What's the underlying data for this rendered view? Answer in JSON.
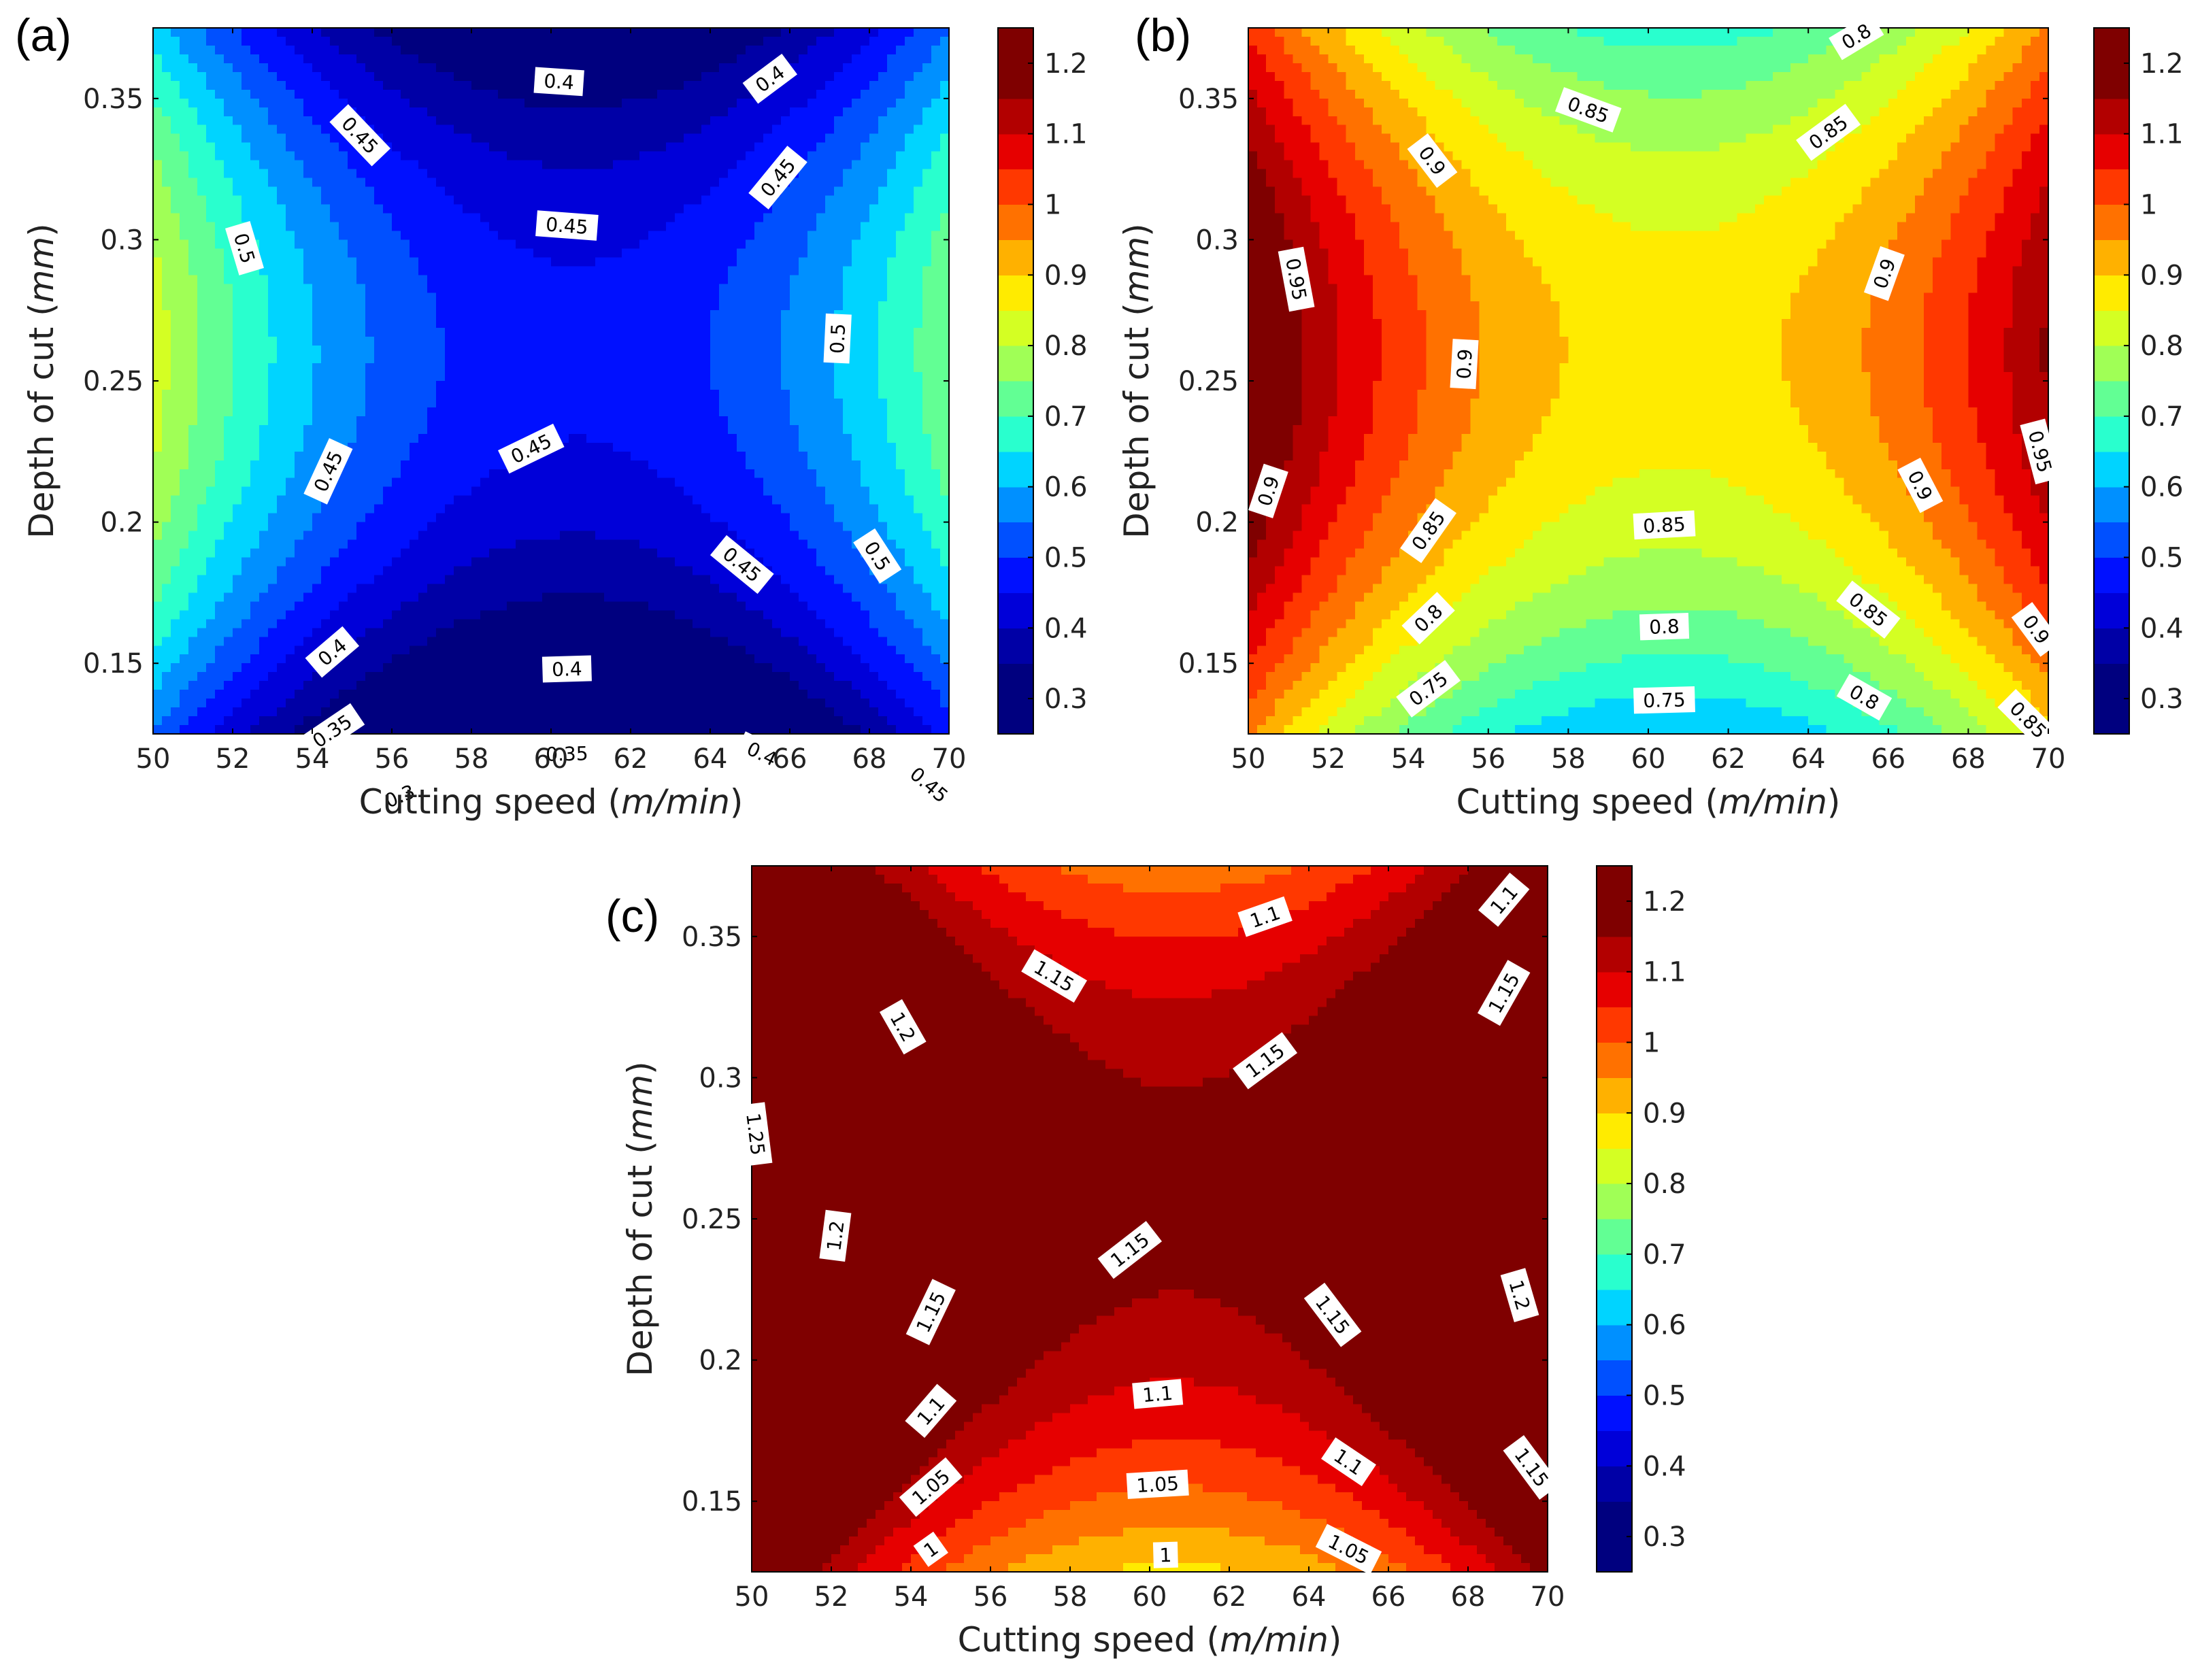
{
  "figure": {
    "colorscale": [
      "#00007f",
      "#0000a6",
      "#0000d9",
      "#0010ff",
      "#0050ff",
      "#0090ff",
      "#00d4ff",
      "#29ffce",
      "#62ff94",
      "#a0ff56",
      "#d4ff23",
      "#ffeb00",
      "#ffb100",
      "#ff7100",
      "#ff3800",
      "#e60000",
      "#b20000",
      "#7f0000"
    ],
    "colorbar_levels": [
      0.25,
      0.3,
      0.35,
      0.4,
      0.45,
      0.5,
      0.55,
      0.6,
      0.65,
      0.7,
      0.75,
      0.8,
      0.85,
      0.9,
      0.95,
      1.0,
      1.05,
      1.1,
      1.15,
      1.2,
      1.25
    ]
  },
  "chart_data": [
    {
      "type": "contour",
      "panel_label": "(a)",
      "xlabel_main": "Cutting speed (",
      "xlabel_unit": "m/min",
      "xlabel_close": ")",
      "ylabel_main": "Depth of cut (",
      "ylabel_unit": "mm",
      "ylabel_close": ")",
      "xlim": [
        50,
        70
      ],
      "ylim": [
        0.125,
        0.375
      ],
      "x_ticks": [
        "50",
        "52",
        "54",
        "56",
        "58",
        "60",
        "62",
        "64",
        "66",
        "68",
        "70"
      ],
      "y_ticks": [
        "0.15",
        "0.2",
        "0.25",
        "0.3",
        "0.35"
      ],
      "colorbar_ticks": [
        "0.3",
        "0.4",
        "0.5",
        "0.6",
        "0.7",
        "0.8",
        "0.9",
        "1",
        "1.1",
        "1.2"
      ],
      "model": {
        "center": 0.464,
        "curv_x": 0.32,
        "curv_y": -1.5,
        "edge_x": -0.04,
        "slope_y": 0.04
      },
      "contour_labels": [
        {
          "text": "0.4",
          "x": 60.2,
          "y": 0.356
        },
        {
          "text": "0.4",
          "x": 65.5,
          "y": 0.357
        },
        {
          "text": "0.45",
          "x": 55.2,
          "y": 0.337
        },
        {
          "text": "0.45",
          "x": 65.7,
          "y": 0.322
        },
        {
          "text": "0.45",
          "x": 60.4,
          "y": 0.305
        },
        {
          "text": "0.5",
          "x": 52.3,
          "y": 0.297
        },
        {
          "text": "0.5",
          "x": 67.2,
          "y": 0.265
        },
        {
          "text": "0.45",
          "x": 54.4,
          "y": 0.218
        },
        {
          "text": "0.45",
          "x": 59.5,
          "y": 0.226
        },
        {
          "text": "0.45",
          "x": 64.8,
          "y": 0.185
        },
        {
          "text": "0.5",
          "x": 68.2,
          "y": 0.188
        },
        {
          "text": "0.4",
          "x": 54.5,
          "y": 0.154
        },
        {
          "text": "0.4",
          "x": 60.4,
          "y": 0.148
        },
        {
          "text": "0.35",
          "x": 54.5,
          "y": 0.126
        },
        {
          "text": "0.35",
          "x": 60.4,
          "y": 0.118
        },
        {
          "text": "0.4",
          "x": 65.3,
          "y": 0.118
        },
        {
          "text": "0.3",
          "x": 56.2,
          "y": 0.103
        },
        {
          "text": "0.45",
          "x": 69.5,
          "y": 0.107
        }
      ]
    },
    {
      "type": "contour",
      "panel_label": "(b)",
      "xlabel_main": "Cutting speed (",
      "xlabel_unit": "m/min",
      "xlabel_close": ")",
      "ylabel_main": "Depth of cut (",
      "ylabel_unit": "mm",
      "ylabel_close": ")",
      "xlim": [
        50,
        70
      ],
      "ylim": [
        0.125,
        0.375
      ],
      "x_ticks": [
        "50",
        "52",
        "54",
        "56",
        "58",
        "60",
        "62",
        "64",
        "66",
        "68",
        "70"
      ],
      "y_ticks": [
        "0.15",
        "0.2",
        "0.25",
        "0.3",
        "0.35"
      ],
      "colorbar_ticks": [
        "0.3",
        "0.4",
        "0.5",
        "0.6",
        "0.7",
        "0.8",
        "0.9",
        "1",
        "1.1",
        "1.2"
      ],
      "model": {
        "center": 0.876,
        "curv_x": 0.32,
        "curv_y": -1.5,
        "edge_x": -0.04,
        "slope_y": 0.04
      },
      "contour_labels": [
        {
          "text": "0.8",
          "x": 65.2,
          "y": 0.372
        },
        {
          "text": "0.85",
          "x": 58.5,
          "y": 0.346
        },
        {
          "text": "0.85",
          "x": 64.5,
          "y": 0.338
        },
        {
          "text": "0.9",
          "x": 54.6,
          "y": 0.328
        },
        {
          "text": "0.95",
          "x": 51.2,
          "y": 0.286
        },
        {
          "text": "0.9",
          "x": 65.9,
          "y": 0.288
        },
        {
          "text": "0.9",
          "x": 55.4,
          "y": 0.256
        },
        {
          "text": "0.95",
          "x": 69.8,
          "y": 0.225
        },
        {
          "text": "0.9",
          "x": 50.5,
          "y": 0.211
        },
        {
          "text": "0.9",
          "x": 66.8,
          "y": 0.213
        },
        {
          "text": "0.85",
          "x": 54.5,
          "y": 0.197
        },
        {
          "text": "0.85",
          "x": 60.4,
          "y": 0.199
        },
        {
          "text": "0.85",
          "x": 65.5,
          "y": 0.169
        },
        {
          "text": "0.8",
          "x": 54.5,
          "y": 0.166
        },
        {
          "text": "0.8",
          "x": 60.4,
          "y": 0.163
        },
        {
          "text": "0.9",
          "x": 69.7,
          "y": 0.162
        },
        {
          "text": "0.75",
          "x": 54.5,
          "y": 0.141
        },
        {
          "text": "0.75",
          "x": 60.4,
          "y": 0.137
        },
        {
          "text": "0.8",
          "x": 65.4,
          "y": 0.138
        },
        {
          "text": "0.85",
          "x": 69.5,
          "y": 0.13
        }
      ]
    },
    {
      "type": "contour",
      "panel_label": "(c)",
      "xlabel_main": "Cutting speed (",
      "xlabel_unit": "m/min",
      "xlabel_close": ")",
      "ylabel_main": "Depth of cut (",
      "ylabel_unit": "mm",
      "ylabel_close": ")",
      "xlim": [
        50,
        70
      ],
      "ylim": [
        0.125,
        0.375
      ],
      "x_ticks": [
        "50",
        "52",
        "54",
        "56",
        "58",
        "60",
        "62",
        "64",
        "66",
        "68",
        "70"
      ],
      "y_ticks": [
        "0.15",
        "0.2",
        "0.25",
        "0.3",
        "0.35"
      ],
      "colorbar_ticks": [
        "0.3",
        "0.4",
        "0.5",
        "0.6",
        "0.7",
        "0.8",
        "0.9",
        "1",
        "1.1",
        "1.2"
      ],
      "model": {
        "center": 1.17,
        "curv_x": 0.32,
        "curv_y": -1.5,
        "edge_x": -0.04,
        "slope_y": 0.04
      },
      "contour_labels": [
        {
          "text": "1.1",
          "x": 62.9,
          "y": 0.357
        },
        {
          "text": "1.1",
          "x": 68.9,
          "y": 0.363
        },
        {
          "text": "1.15",
          "x": 57.6,
          "y": 0.336
        },
        {
          "text": "1.15",
          "x": 68.9,
          "y": 0.33
        },
        {
          "text": "1.2",
          "x": 53.8,
          "y": 0.318
        },
        {
          "text": "1.15",
          "x": 62.9,
          "y": 0.306
        },
        {
          "text": "1.25",
          "x": 50.1,
          "y": 0.28
        },
        {
          "text": "1.2",
          "x": 52.1,
          "y": 0.244
        },
        {
          "text": "1.15",
          "x": 59.5,
          "y": 0.239
        },
        {
          "text": "1.15",
          "x": 54.5,
          "y": 0.217
        },
        {
          "text": "1.15",
          "x": 64.6,
          "y": 0.216
        },
        {
          "text": "1.2",
          "x": 69.3,
          "y": 0.223
        },
        {
          "text": "1.1",
          "x": 54.5,
          "y": 0.182
        },
        {
          "text": "1.1",
          "x": 60.2,
          "y": 0.188
        },
        {
          "text": "1.1",
          "x": 65.0,
          "y": 0.164
        },
        {
          "text": "1.15",
          "x": 69.6,
          "y": 0.162
        },
        {
          "text": "1.05",
          "x": 54.5,
          "y": 0.155
        },
        {
          "text": "1.05",
          "x": 60.2,
          "y": 0.156
        },
        {
          "text": "1.05",
          "x": 65.0,
          "y": 0.133
        },
        {
          "text": "1",
          "x": 54.5,
          "y": 0.133
        },
        {
          "text": "1",
          "x": 60.4,
          "y": 0.131
        }
      ]
    }
  ]
}
